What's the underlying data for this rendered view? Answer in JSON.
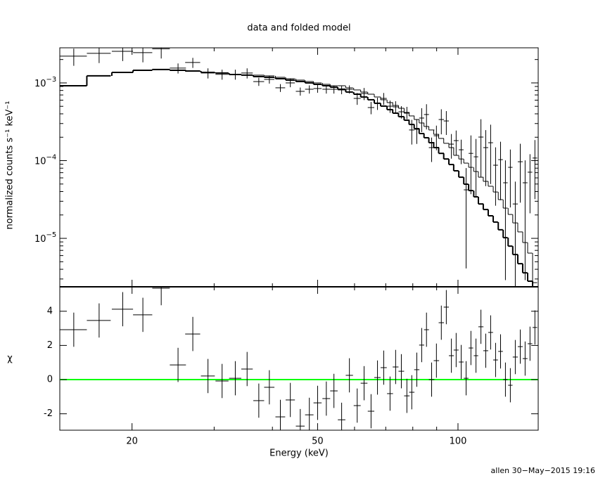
{
  "chart_data": {
    "type": "xspec",
    "title": "data and folded model",
    "xlabel": "Energy (keV)",
    "ylabel": "normalized counts s⁻¹ keV⁻¹",
    "y2label": "χ",
    "footer": "allen 30−May−2015 19:16",
    "xlog": true,
    "ylog": true,
    "xlim": [
      14.0,
      148.6
    ],
    "ylim": [
      2.38e-06,
      0.00283
    ],
    "y2lim": [
      -2.96,
      5.43
    ],
    "xticks": [
      20,
      50,
      100
    ],
    "xminor": [
      30,
      40,
      60,
      70,
      80,
      90
    ],
    "yticks": [
      {
        "value": 1e-05,
        "label": "10",
        "exponent": "−5"
      },
      {
        "value": 0.0001,
        "label": "10",
        "exponent": "−4"
      },
      {
        "value": 0.001,
        "label": "10",
        "exponent": "−3"
      }
    ],
    "yminor": [
      3e-06,
      4e-06,
      5e-06,
      6e-06,
      7e-06,
      8e-06,
      9e-06,
      2e-05,
      3e-05,
      4e-05,
      5e-05,
      6e-05,
      7e-05,
      8e-05,
      9e-05,
      0.0002,
      0.0003,
      0.0004,
      0.0005,
      0.0006,
      0.0007,
      0.0008,
      0.0009,
      0.002
    ],
    "y2ticks": [
      -2,
      0,
      2,
      4
    ],
    "data_color": "#000000",
    "zero_line_color": "#00ff00",
    "x": [
      15.0,
      17.0,
      19.1,
      21.1,
      23.1,
      25.1,
      27.0,
      29.1,
      31.2,
      33.3,
      35.3,
      37.4,
      39.4,
      41.6,
      43.7,
      45.9,
      48.0,
      50.0,
      52.2,
      54.2,
      56.3,
      58.5,
      60.8,
      62.9,
      65.1,
      67.2,
      69.3,
      71.5,
      73.5,
      75.6,
      77.7,
      79.6,
      81.6,
      83.6,
      85.6,
      87.8,
      89.9,
      92.1,
      94.4,
      96.8,
      99.1,
      101.6,
      104.1,
      106.6,
      109.3,
      112.0,
      114.7,
      117.5,
      120.4,
      123.4,
      126.4,
      129.5,
      132.7,
      136.0,
      139.3,
      142.7,
      146.2
    ],
    "xerr": [
      1.0,
      1.0,
      1.0,
      1.0,
      1.0,
      1.0,
      1.0,
      1.0,
      1.0,
      1.0,
      1.0,
      1.0,
      1.0,
      1.0,
      1.0,
      1.0,
      1.0,
      1.0,
      1.0,
      1.0,
      1.05,
      1.05,
      1.05,
      1.05,
      1.05,
      1.05,
      1.05,
      1.05,
      1.05,
      1.05,
      1.05,
      1.05,
      1.05,
      1.05,
      1.05,
      1.2,
      1.2,
      1.2,
      1.2,
      1.2,
      1.2,
      1.2,
      1.2,
      1.2,
      1.2,
      1.4,
      1.4,
      1.4,
      1.4,
      1.4,
      1.4,
      1.4,
      1.65,
      1.65,
      1.65,
      1.65,
      1.65
    ],
    "counts": [
      0.00221,
      0.0024,
      0.00255,
      0.00245,
      0.00275,
      0.00155,
      0.00183,
      0.00134,
      0.00129,
      0.00129,
      0.00134,
      0.00104,
      0.00111,
      0.000865,
      0.001,
      0.000779,
      0.000829,
      0.000847,
      0.000829,
      0.000829,
      0.000812,
      0.000829,
      0.000632,
      0.000731,
      0.000482,
      0.000547,
      0.000632,
      0.000502,
      0.000492,
      0.000425,
      0.000417,
      0.000248,
      0.000253,
      0.000353,
      0.000392,
      0.000147,
      0.000209,
      0.000338,
      0.000324,
      0.000163,
      0.000181,
      0.000138,
      4.21e-05,
      0.000124,
      0.000112,
      0.000201,
      0.000147,
      0.00017,
      8.73e-05,
      0.000103,
      5.19e-05,
      8.2e-05,
      2.77e-05,
      9.68e-05,
      5.19e-05,
      7.1e-05,
      0.000108
    ],
    "counts_err": [
      0.00055,
      0.0006,
      0.00064,
      0.00061,
      0.00069,
      0.00023,
      0.00027,
      0.0002,
      0.00019,
      0.00019,
      0.0002,
      0.000125,
      0.00013,
      0.0001,
      0.00012,
      9.3e-05,
      0.0001,
      0.0001,
      0.0001,
      0.0001,
      9.7e-05,
      0.0001,
      0.00011,
      0.00013,
      8.7e-05,
      9.8e-05,
      0.00011,
      9e-05,
      8.9e-05,
      7.7e-05,
      7.5e-05,
      8.7e-05,
      8.9e-05,
      0.00012,
      0.00014,
      5.1e-05,
      7.3e-05,
      0.00012,
      0.00011,
      5.7e-05,
      6.3e-05,
      4.8e-05,
      3.8e-05,
      8.7e-05,
      7.8e-05,
      0.00014,
      0.0001,
      0.00012,
      6.1e-05,
      7.2e-05,
      4.9e-05,
      5.7e-05,
      2.6e-05,
      6.8e-05,
      4.9e-05,
      5e-05,
      7.6e-05
    ],
    "residuals": [
      2.92,
      3.46,
      4.12,
      3.79,
      5.35,
      0.86,
      2.67,
      0.21,
      -0.08,
      0.08,
      0.62,
      -1.23,
      -0.45,
      -2.18,
      -1.19,
      -2.72,
      -2.06,
      -1.36,
      -1.11,
      -0.66,
      -2.35,
      0.25,
      -1.52,
      -0.21,
      -1.85,
      0.12,
      0.7,
      -0.82,
      0.74,
      0.49,
      -0.95,
      -0.74,
      0.58,
      2.02,
      2.92,
      0,
      1.11,
      3.33,
      4.24,
      1.4,
      1.73,
      1.03,
      0.08,
      1.85,
      1.4,
      3.09,
      1.69,
      2.76,
      1.15,
      1.65,
      0,
      -0.33,
      1.32,
      1.93,
      1.23,
      2.1,
      3.05
    ],
    "residual_err": 1,
    "models": [
      {
        "color": "#000000",
        "width": 2,
        "values": [
          0.00092,
          0.001232,
          0.001367,
          0.001455,
          0.001486,
          0.001455,
          0.001425,
          0.001367,
          0.001339,
          0.001284,
          0.001258,
          0.001206,
          0.001181,
          0.001133,
          0.001087,
          0.001043,
          0.001,
          0.000959,
          0.00092,
          0.000882,
          0.000829,
          0.000763,
          0.000716,
          0.000659,
          0.000607,
          0.000547,
          0.000503,
          0.000453,
          0.000408,
          0.000368,
          0.000331,
          0.000292,
          0.000258,
          0.000223,
          0.000197,
          0.00017,
          0.000147,
          0.000124,
          0.000105,
          8.91e-05,
          7.4e-05,
          6.12e-05,
          4.98e-05,
          4.12e-05,
          3.42e-05,
          2.77e-05,
          2.35e-05,
          1.95e-05,
          1.62e-05,
          1.29e-05,
          1.02e-05,
          7.94e-06,
          6.19e-06,
          4.72e-06,
          3.6e-06,
          2.81e-06,
          2.18e-06
        ]
      },
      {
        "color": "#000000",
        "width": 1,
        "values": [
          0.00092,
          0.001232,
          0.001367,
          0.001455,
          0.001486,
          0.001455,
          0.001425,
          0.001367,
          0.001339,
          0.001284,
          0.001258,
          0.001258,
          0.001232,
          0.001181,
          0.001133,
          0.001087,
          0.001043,
          0.001,
          0.000959,
          0.00092,
          0.00092,
          0.000864,
          0.000812,
          0.000763,
          0.000716,
          0.000659,
          0.000607,
          0.000558,
          0.000513,
          0.000472,
          0.000408,
          0.000376,
          0.000338,
          0.000305,
          0.000275,
          0.000248,
          0.000218,
          0.000193,
          0.000167,
          0.000147,
          0.000117,
          0.000105,
          9.29e-05,
          8.2e-05,
          7.24e-05,
          6.12e-05,
          5.41e-05,
          4.68e-05,
          3.95e-05,
          3.15e-05,
          2.45e-05,
          2.03e-05,
          1.58e-05,
          1.21e-05,
          8.83e-06,
          6.46e-06,
          2.69e-06
        ]
      }
    ]
  }
}
